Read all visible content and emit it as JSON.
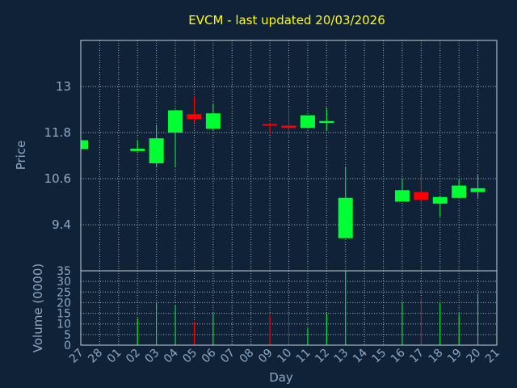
{
  "title": "EVCM - last updated 20/03/2026",
  "colors": {
    "background": "#0f2238",
    "up": "#00ff33",
    "down": "#ff0000",
    "text": "#8fa8c4",
    "title": "#ffff00"
  },
  "chart_data": [
    {
      "type": "candlestick",
      "title": "EVCM - last updated 20/03/2026",
      "ylabel": "Price",
      "ylim": [
        8.2,
        14.2
      ],
      "yticks": [
        "13",
        "11.8",
        "10.6",
        "9.4"
      ],
      "ytick_values": [
        13,
        11.8,
        10.6,
        9.4
      ],
      "grid": true,
      "candles": [
        {
          "day": "27",
          "open": 11.37,
          "high": 11.6,
          "low": 11.37,
          "close": 11.6
        },
        {
          "day": "02",
          "open": 11.32,
          "high": 11.6,
          "low": 11.3,
          "close": 11.38
        },
        {
          "day": "03",
          "open": 11.0,
          "high": 12.0,
          "low": 10.9,
          "close": 11.65
        },
        {
          "day": "04",
          "open": 11.8,
          "high": 12.4,
          "low": 10.9,
          "close": 12.38
        },
        {
          "day": "05",
          "open": 12.28,
          "high": 12.75,
          "low": 12.05,
          "close": 12.15
        },
        {
          "day": "06",
          "open": 11.9,
          "high": 12.55,
          "low": 11.85,
          "close": 12.3
        },
        {
          "day": "09",
          "open": 12.02,
          "high": 12.05,
          "low": 11.75,
          "close": 11.98
        },
        {
          "day": "10",
          "open": 11.98,
          "high": 12.45,
          "low": 11.65,
          "close": 11.92
        },
        {
          "day": "11",
          "open": 11.92,
          "high": 12.25,
          "low": 11.92,
          "close": 12.25
        },
        {
          "day": "12",
          "open": 12.05,
          "high": 12.45,
          "low": 11.85,
          "close": 12.1
        },
        {
          "day": "13",
          "open": 9.05,
          "high": 10.9,
          "low": 9.05,
          "close": 10.1
        },
        {
          "day": "16",
          "open": 10.0,
          "high": 10.6,
          "low": 10.0,
          "close": 10.3
        },
        {
          "day": "17",
          "open": 10.25,
          "high": 10.7,
          "low": 9.95,
          "close": 10.05
        },
        {
          "day": "18",
          "open": 9.95,
          "high": 10.15,
          "low": 9.6,
          "close": 10.12
        },
        {
          "day": "19",
          "open": 10.1,
          "high": 10.6,
          "low": 10.1,
          "close": 10.42
        },
        {
          "day": "20",
          "open": 10.25,
          "high": 10.7,
          "low": 10.1,
          "close": 10.35
        }
      ]
    },
    {
      "type": "bar",
      "ylabel": "Volume (0000)",
      "xlabel": "Day",
      "ylim": [
        0,
        35
      ],
      "yticks": [
        "35",
        "30",
        "25",
        "20",
        "15",
        "10",
        "5",
        "0"
      ],
      "ytick_values": [
        35,
        30,
        25,
        20,
        15,
        10,
        5,
        0
      ],
      "categories": [
        "27",
        "28",
        "01",
        "02",
        "03",
        "04",
        "05",
        "06",
        "07",
        "08",
        "09",
        "10",
        "11",
        "12",
        "13",
        "14",
        "15",
        "16",
        "17",
        "18",
        "19",
        "20",
        "21"
      ],
      "values": [
        0,
        0,
        0,
        12.5,
        20,
        19,
        11,
        15,
        0,
        0,
        14.5,
        14,
        8,
        15,
        35,
        0,
        0,
        20,
        22.5,
        20,
        15,
        24,
        0
      ],
      "directions": [
        "up",
        "",
        "",
        "up",
        "up",
        "up",
        "down",
        "up",
        "",
        "",
        "down",
        "down",
        "up",
        "up",
        "up",
        "",
        "",
        "up",
        "down",
        "up",
        "up",
        "up",
        ""
      ]
    }
  ]
}
